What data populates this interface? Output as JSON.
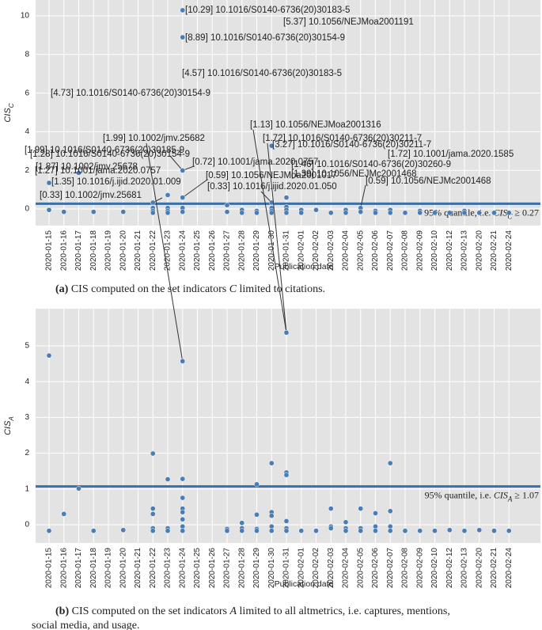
{
  "chart_data": [
    {
      "type": "scatter",
      "ylabel": [
        {
          "text": "CIS",
          "style": "italic"
        },
        {
          "text": "C",
          "style": "italic",
          "sub": true
        }
      ],
      "xlabel": "Publication date",
      "categories": [
        "2020-01-15",
        "2020-01-16",
        "2020-01-17",
        "2020-01-18",
        "2020-01-19",
        "2020-01-20",
        "2020-01-21",
        "2020-01-22",
        "2020-01-23",
        "2020-01-24",
        "2020-01-25",
        "2020-01-26",
        "2020-01-27",
        "2020-01-28",
        "2020-01-29",
        "2020-01-30",
        "2020-01-31",
        "2020-02-01",
        "2020-02-02",
        "2020-02-03",
        "2020-02-04",
        "2020-02-05",
        "2020-02-06",
        "2020-02-07",
        "2020-02-08",
        "2020-02-09",
        "2020-02-10",
        "2020-02-12",
        "2020-02-13",
        "2020-02-20",
        "2020-02-21",
        "2020-02-24"
      ],
      "ylim": [
        -0.86,
        10.82
      ],
      "yticks": [
        0,
        2,
        4,
        6,
        8,
        10
      ],
      "grid": true,
      "series": [
        {
          "color": "#4a7db3",
          "x": [
            "2020-01-15",
            "2020-01-15",
            "2020-01-16",
            "2020-01-17",
            "2020-01-18",
            "2020-01-20",
            "2020-01-22",
            "2020-01-22",
            "2020-01-22",
            "2020-01-22",
            "2020-01-23",
            "2020-01-23",
            "2020-01-23",
            "2020-01-23",
            "2020-01-24",
            "2020-01-24",
            "2020-01-24",
            "2020-01-24",
            "2020-01-24",
            "2020-01-24",
            "2020-01-27",
            "2020-01-27",
            "2020-01-28",
            "2020-01-28",
            "2020-01-29",
            "2020-01-29",
            "2020-01-30",
            "2020-01-30",
            "2020-01-30",
            "2020-01-30",
            "2020-01-30",
            "2020-01-31",
            "2020-01-31",
            "2020-01-31",
            "2020-01-31",
            "2020-02-01",
            "2020-02-01",
            "2020-02-02",
            "2020-02-03",
            "2020-02-04",
            "2020-02-04",
            "2020-02-05",
            "2020-02-05",
            "2020-02-06",
            "2020-02-06",
            "2020-02-07",
            "2020-02-07",
            "2020-02-08",
            "2020-02-09",
            "2020-02-09",
            "2020-02-10",
            "2020-02-12",
            "2020-02-13",
            "2020-02-13",
            "2020-02-20",
            "2020-02-21",
            "2020-02-24"
          ],
          "values": [
            -0.05,
            1.35,
            -0.15,
            1.87,
            -0.15,
            -0.15,
            0.33,
            0.05,
            -0.1,
            -0.2,
            0.72,
            0.05,
            -0.1,
            -0.2,
            10.29,
            8.89,
            1.99,
            0.59,
            0.05,
            -0.15,
            0.2,
            -0.15,
            -0.05,
            -0.2,
            -0.1,
            -0.2,
            3.27,
            0.33,
            0.05,
            -0.1,
            -0.2,
            0.59,
            0.1,
            -0.05,
            -0.2,
            -0.05,
            -0.2,
            -0.05,
            -0.2,
            -0.05,
            -0.2,
            0.05,
            -0.15,
            -0.1,
            -0.2,
            -0.05,
            -0.2,
            -0.2,
            -0.1,
            -0.2,
            -0.2,
            -0.2,
            -0.1,
            -0.2,
            -0.2,
            -0.2,
            -0.2
          ]
        }
      ],
      "threshold": 0.27,
      "threshold_color": "#3a6fa8",
      "threshold_label": [
        {
          "text": "95% quantile, i.e. "
        },
        {
          "text": "CIS",
          "style": "italic"
        },
        {
          "text": "C",
          "style": "italic",
          "sub": true
        },
        {
          "text": " ≥ 0.27"
        }
      ],
      "annotations": [
        "[10.29] 10.1016/S0140-6736(20)30183-5",
        "[8.89] 10.1016/S0140-6736(20)30154-9",
        "[1.99] 10.1016/S0140-6736(20)30185-9",
        "[1.87] 10.1002/jmv.25678",
        "[1.35] 10.1016/j.ijid.2020.01.009",
        "[0.33] 10.1002/jmv.25681",
        "[0.72] 10.1001/jama.2020.0757",
        "[0.59] 10.1056/NEJMoa2001017",
        "[0.33] 10.1016/j.ijid.2020.01.050",
        "[3.27] 10.1016/S0140-6736(20)30211-7",
        "[0.59] 10.1056/NEJMc2001468"
      ],
      "caption_lines": [
        [
          {
            "text": "(a)",
            "style": "bold"
          },
          {
            "text": " CIS computed on the set indicators "
          },
          {
            "text": "C",
            "style": "italic"
          },
          {
            "text": " limited to citations."
          }
        ]
      ]
    },
    {
      "type": "scatter",
      "ylabel": [
        {
          "text": "CIS",
          "style": "italic"
        },
        {
          "text": "A",
          "style": "italic",
          "sub": true
        }
      ],
      "xlabel": "Publication date",
      "categories": [
        "2020-01-15",
        "2020-01-16",
        "2020-01-17",
        "2020-01-18",
        "2020-01-19",
        "2020-01-20",
        "2020-01-21",
        "2020-01-22",
        "2020-01-23",
        "2020-01-24",
        "2020-01-25",
        "2020-01-26",
        "2020-01-27",
        "2020-01-28",
        "2020-01-29",
        "2020-01-30",
        "2020-01-31",
        "2020-02-01",
        "2020-02-02",
        "2020-02-03",
        "2020-02-04",
        "2020-02-05",
        "2020-02-06",
        "2020-02-07",
        "2020-02-08",
        "2020-02-09",
        "2020-02-10",
        "2020-02-12",
        "2020-02-13",
        "2020-02-20",
        "2020-02-21",
        "2020-02-24"
      ],
      "ylim": [
        -0.51,
        6.04
      ],
      "yticks": [
        0,
        1,
        2,
        3,
        4,
        5
      ],
      "grid": true,
      "series": [
        {
          "color": "#4a7db3",
          "x": [
            "2020-01-15",
            "2020-01-15",
            "2020-01-16",
            "2020-01-17",
            "2020-01-18",
            "2020-01-20",
            "2020-01-22",
            "2020-01-22",
            "2020-01-22",
            "2020-01-22",
            "2020-01-22",
            "2020-01-23",
            "2020-01-23",
            "2020-01-23",
            "2020-01-24",
            "2020-01-24",
            "2020-01-24",
            "2020-01-24",
            "2020-01-24",
            "2020-01-24",
            "2020-01-24",
            "2020-01-24",
            "2020-01-27",
            "2020-01-27",
            "2020-01-28",
            "2020-01-28",
            "2020-01-28",
            "2020-01-29",
            "2020-01-29",
            "2020-01-29",
            "2020-01-29",
            "2020-01-30",
            "2020-01-30",
            "2020-01-30",
            "2020-01-30",
            "2020-01-30",
            "2020-01-31",
            "2020-01-31",
            "2020-01-31",
            "2020-01-31",
            "2020-01-31",
            "2020-01-31",
            "2020-02-01",
            "2020-02-02",
            "2020-02-03",
            "2020-02-03",
            "2020-02-03",
            "2020-02-04",
            "2020-02-04",
            "2020-02-04",
            "2020-02-05",
            "2020-02-05",
            "2020-02-05",
            "2020-02-06",
            "2020-02-06",
            "2020-02-06",
            "2020-02-07",
            "2020-02-07",
            "2020-02-07",
            "2020-02-07",
            "2020-02-08",
            "2020-02-09",
            "2020-02-10",
            "2020-02-12",
            "2020-02-13",
            "2020-02-20",
            "2020-02-21",
            "2020-02-24"
          ],
          "values": [
            4.73,
            -0.17,
            0.3,
            1.01,
            -0.17,
            -0.15,
            1.99,
            0.45,
            0.3,
            -0.1,
            -0.17,
            1.27,
            -0.1,
            -0.17,
            4.57,
            1.28,
            0.75,
            0.45,
            0.35,
            0.15,
            -0.05,
            -0.17,
            -0.12,
            -0.17,
            0.05,
            -0.1,
            -0.17,
            1.13,
            0.28,
            -0.12,
            -0.17,
            1.72,
            0.35,
            0.25,
            -0.05,
            -0.17,
            5.37,
            1.46,
            1.39,
            0.1,
            -0.1,
            -0.17,
            -0.17,
            -0.17,
            0.45,
            -0.05,
            -0.1,
            0.07,
            -0.1,
            -0.17,
            0.45,
            -0.1,
            -0.17,
            0.32,
            -0.05,
            -0.17,
            1.72,
            0.38,
            -0.05,
            -0.17,
            -0.17,
            -0.17,
            -0.17,
            -0.15,
            -0.17,
            -0.15,
            -0.17,
            -0.17
          ]
        }
      ],
      "threshold": 1.07,
      "threshold_color": "#3a6fa8",
      "threshold_label": [
        {
          "text": "95% quantile, i.e. "
        },
        {
          "text": "CIS",
          "style": "italic"
        },
        {
          "text": "A",
          "style": "italic",
          "sub": true
        },
        {
          "text": " ≥ 1.07"
        }
      ],
      "annotations": [
        "[5.37] 10.1056/NEJMoa2001191",
        "[4.57] 10.1016/S0140-6736(20)30183-5",
        "[4.73] 10.1016/S0140-6736(20)30154-9",
        "[1.99] 10.1002/jmv.25682",
        "[1.28] 10.1016/S0140-6736(20)30154-9",
        "[1.27] 10.1001/jama.2020.0757",
        "[1.13] 10.1056/NEJMoa2001316",
        "[1.72] 10.1016/S0140-6736(20)30211-7",
        "[1.46] 10.1016/S0140-6736(20)30260-9",
        "[1.39] 10.1056/NEJMc2001468",
        "[1.72] 10.1001/jama.2020.1585"
      ],
      "caption_lines": [
        [
          {
            "text": "(b)",
            "style": "bold"
          },
          {
            "text": " CIS computed on the set indicators "
          },
          {
            "text": "A",
            "style": "italic"
          },
          {
            "text": " limited to all altmetrics, i.e. captures, mentions,"
          }
        ],
        [
          {
            "text": "social media, and usage."
          }
        ]
      ]
    }
  ]
}
